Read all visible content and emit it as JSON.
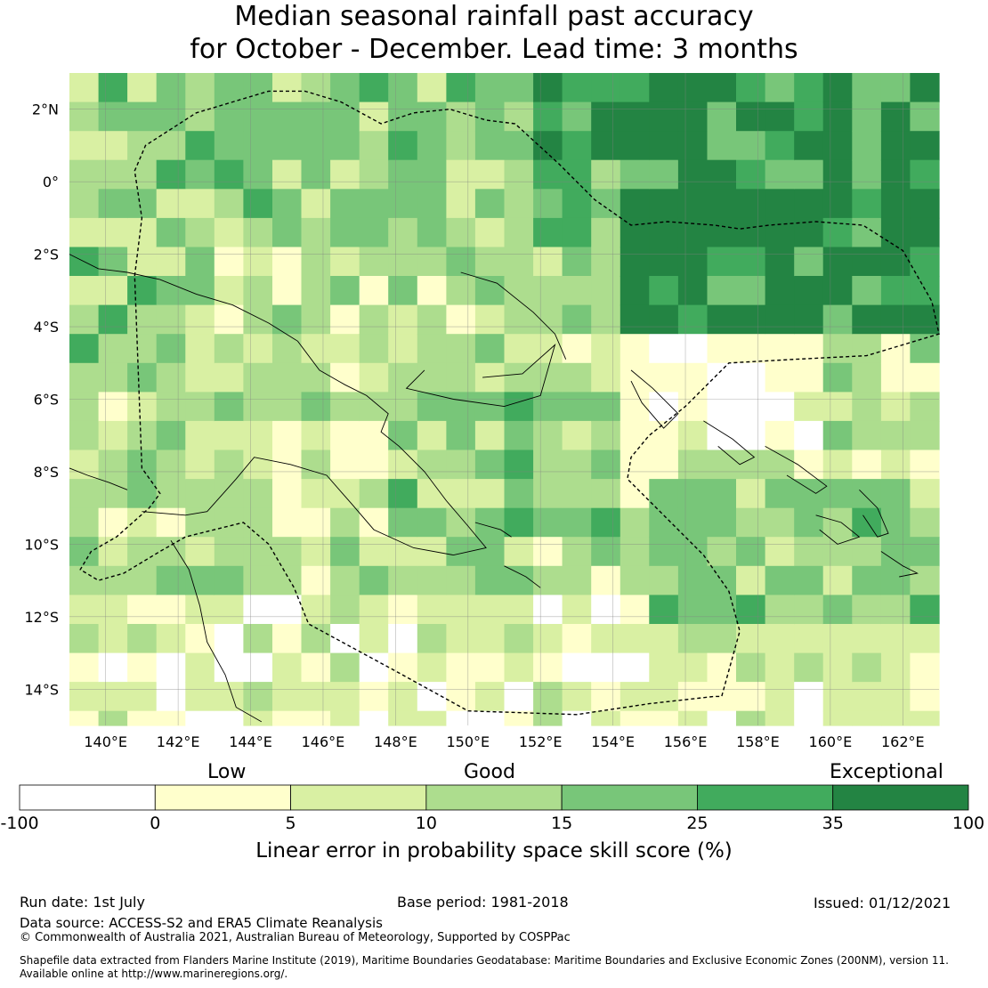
{
  "title": {
    "line1": "Median seasonal rainfall past accuracy",
    "line2": "for October - December. Lead time: 3 months"
  },
  "map": {
    "lat_range": [
      -15,
      3
    ],
    "lon_range": [
      139,
      163
    ],
    "lat_ticks": [
      {
        "value": 2,
        "label": "2°N"
      },
      {
        "value": 0,
        "label": "0°"
      },
      {
        "value": -2,
        "label": "2°S"
      },
      {
        "value": -4,
        "label": "4°S"
      },
      {
        "value": -6,
        "label": "6°S"
      },
      {
        "value": -8,
        "label": "8°S"
      },
      {
        "value": -10,
        "label": "10°S"
      },
      {
        "value": -12,
        "label": "12°S"
      },
      {
        "value": -14,
        "label": "14°S"
      }
    ],
    "lon_ticks": [
      {
        "value": 140,
        "label": "140°E"
      },
      {
        "value": 142,
        "label": "142°E"
      },
      {
        "value": 144,
        "label": "144°E"
      },
      {
        "value": 146,
        "label": "146°E"
      },
      {
        "value": 148,
        "label": "148°E"
      },
      {
        "value": 150,
        "label": "150°E"
      },
      {
        "value": 152,
        "label": "152°E"
      },
      {
        "value": 154,
        "label": "154°E"
      },
      {
        "value": 156,
        "label": "156°E"
      },
      {
        "value": 158,
        "label": "158°E"
      },
      {
        "value": 160,
        "label": "160°E"
      },
      {
        "value": 162,
        "label": "162°E"
      }
    ],
    "gridlines": true,
    "palette": [
      "#ffffff",
      "#ffffcc",
      "#d9f0a3",
      "#addd8e",
      "#78c679",
      "#41ab5d",
      "#238443"
    ],
    "eez_boundary": [
      [
        140.8,
        -2.6
      ],
      [
        141.0,
        -1.0
      ],
      [
        140.8,
        0.3
      ],
      [
        141.1,
        1.0
      ],
      [
        142.5,
        1.9
      ],
      [
        144.5,
        2.5
      ],
      [
        145.5,
        2.5
      ],
      [
        146.5,
        2.2
      ],
      [
        147.6,
        1.6
      ],
      [
        148.5,
        1.9
      ],
      [
        149.5,
        2.0
      ],
      [
        150.5,
        1.7
      ],
      [
        151.3,
        1.6
      ],
      [
        152.5,
        0.5
      ],
      [
        153.5,
        -0.5
      ],
      [
        154.5,
        -1.2
      ],
      [
        155.5,
        -1.1
      ],
      [
        156.8,
        -1.2
      ],
      [
        157.5,
        -1.3
      ],
      [
        158.3,
        -1.2
      ],
      [
        159.6,
        -1.1
      ],
      [
        160.9,
        -1.2
      ],
      [
        162.0,
        -1.9
      ],
      [
        162.8,
        -3.3
      ],
      [
        163.0,
        -4.2
      ],
      [
        162.0,
        -4.5
      ],
      [
        161.0,
        -4.8
      ],
      [
        159.0,
        -4.9
      ],
      [
        157.2,
        -5.0
      ],
      [
        156.0,
        -6.2
      ],
      [
        155.0,
        -7.0
      ],
      [
        154.5,
        -7.6
      ],
      [
        154.4,
        -8.2
      ],
      [
        155.5,
        -9.3
      ],
      [
        156.5,
        -10.3
      ],
      [
        157.2,
        -11.3
      ],
      [
        157.5,
        -12.4
      ],
      [
        157.0,
        -14.2
      ],
      [
        156.8,
        -14.2
      ],
      [
        155.0,
        -14.4
      ],
      [
        153.0,
        -14.7
      ],
      [
        150.0,
        -14.6
      ],
      [
        148.0,
        -13.5
      ],
      [
        145.6,
        -12.2
      ],
      [
        145.2,
        -11.2
      ],
      [
        144.5,
        -10.0
      ],
      [
        143.8,
        -9.4
      ],
      [
        143.0,
        -9.6
      ],
      [
        142.2,
        -9.8
      ],
      [
        141.5,
        -10.2
      ],
      [
        140.5,
        -10.8
      ],
      [
        139.8,
        -11.0
      ],
      [
        139.3,
        -10.7
      ],
      [
        139.6,
        -10.2
      ],
      [
        140.3,
        -9.8
      ],
      [
        141.2,
        -9.0
      ],
      [
        141.5,
        -8.6
      ],
      [
        141.0,
        -7.9
      ]
    ],
    "coastlines": [
      [
        [
          139.0,
          -2.0
        ],
        [
          139.8,
          -2.4
        ],
        [
          140.6,
          -2.5
        ],
        [
          141.5,
          -2.7
        ],
        [
          142.5,
          -3.1
        ],
        [
          143.5,
          -3.4
        ],
        [
          144.5,
          -3.9
        ],
        [
          145.3,
          -4.4
        ],
        [
          145.9,
          -5.2
        ],
        [
          146.6,
          -5.6
        ],
        [
          147.2,
          -5.9
        ],
        [
          147.8,
          -6.4
        ],
        [
          147.6,
          -6.9
        ],
        [
          148.1,
          -7.3
        ],
        [
          148.8,
          -8.0
        ],
        [
          149.4,
          -8.8
        ],
        [
          150.0,
          -9.5
        ],
        [
          150.5,
          -10.1
        ],
        [
          149.6,
          -10.3
        ],
        [
          148.5,
          -10.1
        ],
        [
          147.4,
          -9.6
        ],
        [
          146.8,
          -8.9
        ],
        [
          146.1,
          -8.1
        ],
        [
          145.1,
          -7.8
        ],
        [
          144.1,
          -7.6
        ],
        [
          143.6,
          -8.2
        ],
        [
          142.8,
          -9.1
        ],
        [
          142.2,
          -9.2
        ],
        [
          141.0,
          -9.1
        ]
      ],
      [
        [
          141.8,
          -9.9
        ],
        [
          142.3,
          -10.7
        ],
        [
          142.6,
          -11.7
        ],
        [
          142.8,
          -12.7
        ],
        [
          143.3,
          -13.6
        ],
        [
          143.6,
          -14.5
        ],
        [
          144.3,
          -14.9
        ]
      ],
      [
        [
          139.0,
          -7.9
        ],
        [
          139.5,
          -8.1
        ],
        [
          140.1,
          -8.3
        ],
        [
          140.6,
          -8.5
        ]
      ],
      [
        [
          149.8,
          -2.5
        ],
        [
          150.8,
          -2.8
        ],
        [
          151.8,
          -3.6
        ],
        [
          152.4,
          -4.2
        ],
        [
          152.7,
          -4.9
        ]
      ],
      [
        [
          150.4,
          -5.4
        ],
        [
          151.5,
          -5.3
        ],
        [
          152.4,
          -4.5
        ],
        [
          152.0,
          -5.9
        ],
        [
          151.0,
          -6.2
        ],
        [
          149.6,
          -6.0
        ],
        [
          148.3,
          -5.7
        ],
        [
          148.8,
          -5.2
        ]
      ],
      [
        [
          154.5,
          -5.2
        ],
        [
          155.1,
          -5.7
        ],
        [
          155.8,
          -6.4
        ],
        [
          155.4,
          -6.8
        ],
        [
          154.8,
          -6.1
        ],
        [
          154.5,
          -5.5
        ]
      ],
      [
        [
          156.5,
          -6.6
        ],
        [
          157.3,
          -7.1
        ],
        [
          157.9,
          -7.6
        ],
        [
          157.5,
          -7.8
        ],
        [
          156.9,
          -7.3
        ]
      ],
      [
        [
          158.2,
          -7.3
        ],
        [
          159.1,
          -7.8
        ],
        [
          159.9,
          -8.4
        ],
        [
          159.6,
          -8.6
        ],
        [
          158.8,
          -8.1
        ]
      ],
      [
        [
          159.6,
          -9.2
        ],
        [
          160.3,
          -9.4
        ],
        [
          160.8,
          -9.8
        ],
        [
          160.2,
          -10.0
        ],
        [
          159.7,
          -9.6
        ]
      ],
      [
        [
          160.8,
          -8.5
        ],
        [
          161.3,
          -9.0
        ],
        [
          161.6,
          -9.7
        ],
        [
          161.3,
          -9.8
        ],
        [
          160.9,
          -9.2
        ]
      ],
      [
        [
          161.4,
          -10.2
        ],
        [
          162.0,
          -10.6
        ],
        [
          162.4,
          -10.8
        ],
        [
          161.9,
          -10.9
        ]
      ],
      [
        [
          150.2,
          -9.4
        ],
        [
          150.9,
          -9.6
        ],
        [
          151.2,
          -9.8
        ]
      ],
      [
        [
          151.0,
          -10.6
        ],
        [
          151.6,
          -10.9
        ],
        [
          152.0,
          -11.2
        ]
      ]
    ]
  },
  "colorbar": {
    "ticks": [
      {
        "value": -100,
        "label": "-100"
      },
      {
        "value": 0,
        "label": "0"
      },
      {
        "value": 5,
        "label": "5"
      },
      {
        "value": 10,
        "label": "10"
      },
      {
        "value": 15,
        "label": "15"
      },
      {
        "value": 25,
        "label": "25"
      },
      {
        "value": 35,
        "label": "35"
      },
      {
        "value": 100,
        "label": "100"
      }
    ],
    "categories": {
      "low": "Low",
      "good": "Good",
      "exceptional": "Exceptional"
    },
    "label": "Linear error in probability space skill score (%)"
  },
  "footer": {
    "run_date": "Run date: 1st July",
    "base_period": "Base period: 1981-2018",
    "issued": "Issued: 01/12/2021",
    "data_source": "Data source: ACCESS-S2 and ERA5 Climate Reanalysis",
    "copyright": "© Commonwealth of Australia 2021, Australian Bureau of Meteorology, Supported by COSPPac",
    "shapefile1": "Shapefile data extracted from Flanders Marine Institute (2019), Maritime Boundaries Geodatabase: Maritime Boundaries and Exclusive Economic Zones (200NM), version 11.",
    "shapefile2": "Available online at http://www.marineregions.org/."
  }
}
